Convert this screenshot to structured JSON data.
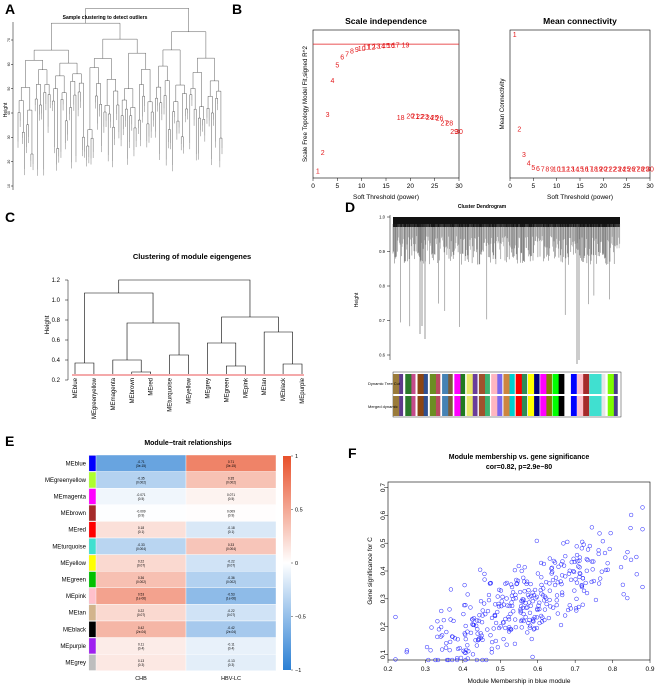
{
  "panels": {
    "A": {
      "letter": "A",
      "title": "Sample clustering to detect outliers",
      "ylabel": "Height",
      "yticks": [
        "10",
        "20",
        "30",
        "40",
        "50",
        "60",
        "70"
      ]
    },
    "B": {
      "letter": "B"
    },
    "C": {
      "letter": "C"
    },
    "D": {
      "letter": "D",
      "title": "Cluster Dendrogram",
      "ylabel": "Height",
      "yticks": [
        "0.6",
        "0.7",
        "0.8",
        "0.9",
        "1.0"
      ],
      "row_labels": [
        "Dynamic Tree Cut",
        "Merged dynamic"
      ],
      "color_segments": [
        "#9a7b3a",
        "#5d3a8b",
        "#2a7a2a",
        "#c54b8c",
        "#8b4513",
        "#2f4f8f",
        "#6b8e23",
        "#b84a62",
        "#4682b4",
        "#7a5c3a",
        "#ff00ff",
        "#1f7a1f",
        "#e8e86a",
        "#6a3d9a",
        "#a0522d",
        "#3cb371",
        "#ffb6c1",
        "#7b68ee",
        "#cd853f",
        "#00ced1",
        "#ff0000",
        "#2e8b57",
        "#ffff00",
        "#000080",
        "#ff00ff",
        "#808000",
        "#00ff00",
        "#000000",
        "#ffffff",
        "#0000ff",
        "#ffc0cb",
        "#a52a2a",
        "#40e0d0",
        "#40e0d0",
        "#e6e6e6",
        "#7cfc00",
        "#483d8b"
      ]
    },
    "E": {
      "letter": "E"
    },
    "F": {
      "letter": "F"
    }
  },
  "chart_data": [
    {
      "type": "scatter",
      "panel": "B-left",
      "title": "Scale independence",
      "xlabel": "Soft Threshold (power)",
      "ylabel": "Scale Free Topology Model Fit,signed R^2",
      "xlim": [
        0,
        30
      ],
      "ylim": [
        -0.05,
        1.0
      ],
      "xticks": [
        0,
        5,
        10,
        15,
        20,
        25,
        30
      ],
      "cutoff_line": 0.9,
      "point_color": "#e31a1c",
      "points": [
        {
          "x": 1,
          "y": 0.0,
          "label": "1"
        },
        {
          "x": 2,
          "y": 0.13,
          "label": "2"
        },
        {
          "x": 3,
          "y": 0.4,
          "label": "3"
        },
        {
          "x": 4,
          "y": 0.64,
          "label": "4"
        },
        {
          "x": 5,
          "y": 0.75,
          "label": "5"
        },
        {
          "x": 6,
          "y": 0.81,
          "label": "6"
        },
        {
          "x": 7,
          "y": 0.83,
          "label": "7"
        },
        {
          "x": 8,
          "y": 0.85,
          "label": "8"
        },
        {
          "x": 9,
          "y": 0.86,
          "label": "9"
        },
        {
          "x": 10,
          "y": 0.87,
          "label": "10"
        },
        {
          "x": 11,
          "y": 0.88,
          "label": "11"
        },
        {
          "x": 12,
          "y": 0.88,
          "label": "12"
        },
        {
          "x": 13,
          "y": 0.885,
          "label": "13"
        },
        {
          "x": 14,
          "y": 0.885,
          "label": "14"
        },
        {
          "x": 15,
          "y": 0.89,
          "label": "15"
        },
        {
          "x": 16,
          "y": 0.89,
          "label": "16"
        },
        {
          "x": 17,
          "y": 0.895,
          "label": "17"
        },
        {
          "x": 18,
          "y": 0.38,
          "label": "18"
        },
        {
          "x": 19,
          "y": 0.895,
          "label": "19"
        },
        {
          "x": 20,
          "y": 0.39,
          "label": "20"
        },
        {
          "x": 21,
          "y": 0.39,
          "label": "21"
        },
        {
          "x": 22,
          "y": 0.385,
          "label": "22"
        },
        {
          "x": 23,
          "y": 0.385,
          "label": "23"
        },
        {
          "x": 24,
          "y": 0.38,
          "label": "24"
        },
        {
          "x": 25,
          "y": 0.38,
          "label": "25"
        },
        {
          "x": 26,
          "y": 0.375,
          "label": "26"
        },
        {
          "x": 27,
          "y": 0.34,
          "label": "27"
        },
        {
          "x": 28,
          "y": 0.34,
          "label": "28"
        },
        {
          "x": 29,
          "y": 0.28,
          "label": "29"
        },
        {
          "x": 30,
          "y": 0.28,
          "label": "30"
        }
      ]
    },
    {
      "type": "scatter",
      "panel": "B-right",
      "title": "Mean connectivity",
      "xlabel": "Soft Threshold (power)",
      "ylabel": "Mean Connectivity",
      "xlim": [
        0,
        30
      ],
      "ylim": [
        0,
        1
      ],
      "xticks": [
        0,
        5,
        10,
        15,
        20,
        25,
        30
      ],
      "point_color": "#e31a1c",
      "points": [
        {
          "x": 1,
          "y": 0.97,
          "label": "1"
        },
        {
          "x": 2,
          "y": 0.33,
          "label": "2"
        },
        {
          "x": 3,
          "y": 0.16,
          "label": "3"
        },
        {
          "x": 4,
          "y": 0.1,
          "label": "4"
        },
        {
          "x": 5,
          "y": 0.07,
          "label": "5"
        },
        {
          "x": 6,
          "y": 0.065,
          "label": "6"
        },
        {
          "x": 7,
          "y": 0.06,
          "label": "7"
        },
        {
          "x": 8,
          "y": 0.06,
          "label": "8"
        },
        {
          "x": 9,
          "y": 0.06,
          "label": "9"
        },
        {
          "x": 10,
          "y": 0.06,
          "label": "10"
        },
        {
          "x": 11,
          "y": 0.06,
          "label": "11"
        },
        {
          "x": 12,
          "y": 0.06,
          "label": "12"
        },
        {
          "x": 13,
          "y": 0.06,
          "label": "13"
        },
        {
          "x": 14,
          "y": 0.06,
          "label": "14"
        },
        {
          "x": 15,
          "y": 0.06,
          "label": "15"
        },
        {
          "x": 16,
          "y": 0.06,
          "label": "16"
        },
        {
          "x": 17,
          "y": 0.06,
          "label": "17"
        },
        {
          "x": 18,
          "y": 0.06,
          "label": "18"
        },
        {
          "x": 19,
          "y": 0.06,
          "label": "19"
        },
        {
          "x": 20,
          "y": 0.06,
          "label": "20"
        },
        {
          "x": 21,
          "y": 0.06,
          "label": "21"
        },
        {
          "x": 22,
          "y": 0.06,
          "label": "22"
        },
        {
          "x": 23,
          "y": 0.06,
          "label": "23"
        },
        {
          "x": 24,
          "y": 0.06,
          "label": "24"
        },
        {
          "x": 25,
          "y": 0.06,
          "label": "25"
        },
        {
          "x": 26,
          "y": 0.06,
          "label": "26"
        },
        {
          "x": 27,
          "y": 0.06,
          "label": "27"
        },
        {
          "x": 28,
          "y": 0.06,
          "label": "28"
        },
        {
          "x": 29,
          "y": 0.06,
          "label": "29"
        },
        {
          "x": 30,
          "y": 0.06,
          "label": "30"
        }
      ]
    },
    {
      "type": "dendrogram",
      "panel": "C",
      "title": "Clustering of module eigengenes",
      "ylabel": "Height",
      "ylim": [
        0.2,
        1.3
      ],
      "yticks": [
        0.2,
        0.4,
        0.6,
        0.8,
        1.0,
        1.2
      ],
      "cutoff_line": 0.25,
      "leaves": [
        "MEblue",
        "MEgreenyellow",
        "MEmagenta",
        "MEbrown",
        "MEred",
        "MEturquoise",
        "MEyellow",
        "MEgrey",
        "MEgreen",
        "MEpink",
        "MEtan",
        "MEblack",
        "MEpurple"
      ],
      "merges": [
        {
          "left": "MEblue",
          "right": "MEgreenyellow",
          "height": 0.37
        },
        {
          "left": "MEred",
          "right": "MEbrown",
          "height": 0.28
        },
        {
          "left": "MEmagenta",
          "right": "c2",
          "height": 0.4
        },
        {
          "left": "MEturquoise",
          "right": "MEyellow",
          "height": 0.45
        },
        {
          "left": "c3",
          "right": "c4",
          "height": 0.77
        },
        {
          "left": "c1",
          "right": "c5",
          "height": 1.07
        },
        {
          "left": "MEgreen",
          "right": "MEpink",
          "height": 0.34
        },
        {
          "left": "MEgrey",
          "right": "c7",
          "height": 0.57
        },
        {
          "left": "MEblack",
          "right": "MEpurple",
          "height": 0.36
        },
        {
          "left": "MEtan",
          "right": "c9",
          "height": 0.68
        },
        {
          "left": "c8",
          "right": "c10",
          "height": 0.83
        },
        {
          "left": "c6",
          "right": "c11",
          "height": 1.2
        }
      ]
    },
    {
      "type": "heatmap",
      "panel": "E",
      "title": "Module−trait relationships",
      "columns": [
        "CHB",
        "HBV-LC"
      ],
      "rows": [
        "MEblue",
        "MEgreenyellow",
        "MEmagenta",
        "MEbrown",
        "MEred",
        "MEturquoise",
        "MEyellow",
        "MEgreen",
        "MEpink",
        "MEtan",
        "MEblack",
        "MEpurple",
        "MEgrey"
      ],
      "row_colors": [
        "#0000ff",
        "#adff2f",
        "#ff00ff",
        "#a52a2a",
        "#ff0000",
        "#40e0d0",
        "#ffff00",
        "#00c000",
        "#ffc0cb",
        "#d2b48c",
        "#000000",
        "#a020f0",
        "#bebebe"
      ],
      "correlations": [
        [
          -0.71,
          0.71
        ],
        [
          -0.35,
          0.35
        ],
        [
          -0.071,
          0.071
        ],
        [
          -0.009,
          0.009
        ],
        [
          0.18,
          -0.18
        ],
        [
          -0.33,
          0.33
        ],
        [
          0.22,
          -0.22
        ],
        [
          0.36,
          -0.36
        ],
        [
          0.53,
          -0.53
        ],
        [
          0.22,
          -0.22
        ],
        [
          0.42,
          -0.42
        ],
        [
          0.11,
          -0.11
        ],
        [
          0.13,
          -0.13
        ]
      ],
      "cell_text": [
        [
          "-0.71\n(3e-15)",
          "0.71\n(3e-15)"
        ],
        [
          "-0.35\n(0.002)",
          "0.35\n(0.002)"
        ],
        [
          "-0.071\n(0.5)",
          "0.071\n(0.5)"
        ],
        [
          "-0.009\n(0.9)",
          "0.009\n(0.9)"
        ],
        [
          "0.18\n(0.1)",
          "-0.18\n(0.1)"
        ],
        [
          "-0.33\n(0.004)",
          "0.33\n(0.004)"
        ],
        [
          "0.22\n(0.07)",
          "-0.22\n(0.07)"
        ],
        [
          "0.36\n(0.002)",
          "-0.36\n(0.002)"
        ],
        [
          "0.53\n(1e-06)",
          "-0.53\n(1e-06)"
        ],
        [
          "0.22\n(0.07)",
          "-0.22\n(0.07)"
        ],
        [
          "0.42\n(2e-04)",
          "-0.42\n(2e-04)"
        ],
        [
          "0.11\n(0.4)",
          "-0.11\n(0.4)"
        ],
        [
          "0.13\n(0.3)",
          "-0.13\n(0.3)"
        ]
      ],
      "legend": {
        "ticks": [
          "1",
          "0.5",
          "0",
          "−0.5",
          "−1"
        ],
        "range": [
          -1,
          1
        ],
        "colors": [
          "#2a7fd4",
          "#ffffff",
          "#e8502a"
        ]
      }
    },
    {
      "type": "scatter",
      "panel": "F",
      "title": "Module membership vs. gene significance",
      "subtitle": "cor=0.82, p=2.9e−80",
      "xlabel": "Module Membership in blue module",
      "ylabel": "Gene significance for C",
      "xlim": [
        0.2,
        0.9
      ],
      "ylim": [
        0.08,
        0.72
      ],
      "xticks": [
        "0.2",
        "0.3",
        "0.4",
        "0.5",
        "0.6",
        "0.7",
        "0.8",
        "0.9"
      ],
      "yticks": [
        "0.1",
        "0.2",
        "0.3",
        "0.4",
        "0.5",
        "0.6",
        "0.7"
      ],
      "point_color": "#2020ff",
      "n_points": 360,
      "correlation": 0.82,
      "x_range": [
        0.22,
        0.88
      ],
      "y_range": [
        0.08,
        0.7
      ]
    }
  ]
}
